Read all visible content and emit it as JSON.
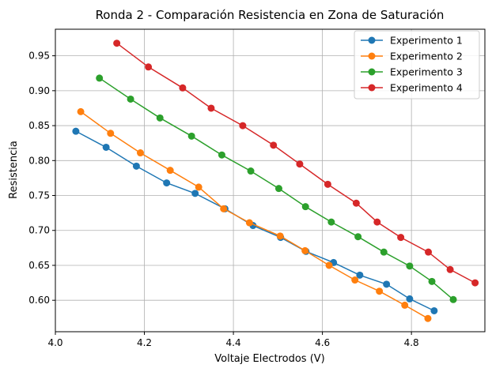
{
  "chart_data": {
    "type": "line",
    "title": "Ronda 2 - Comparación Resistencia en Zona de Saturación",
    "xlabel": "Voltaje Electrodos (V)",
    "ylabel": "Resistencia",
    "xlim": [
      4.0,
      4.965
    ],
    "ylim": [
      0.555,
      0.988
    ],
    "xticks": [
      4.0,
      4.2,
      4.4,
      4.6,
      4.8
    ],
    "xtick_labels": [
      "4.0",
      "4.2",
      "4.4",
      "4.6",
      "4.8"
    ],
    "yticks": [
      0.6,
      0.65,
      0.7,
      0.75,
      0.8,
      0.85,
      0.9,
      0.95
    ],
    "ytick_labels": [
      "0.60",
      "0.65",
      "0.70",
      "0.75",
      "0.80",
      "0.85",
      "0.90",
      "0.95"
    ],
    "grid": true,
    "legend_position": "top-right",
    "series": [
      {
        "name": "Experimento 1",
        "color": "#1f77b4",
        "x": [
          4.046,
          4.114,
          4.182,
          4.25,
          4.314,
          4.381,
          4.444,
          4.506,
          4.563,
          4.625,
          4.684,
          4.744,
          4.796,
          4.851
        ],
        "y": [
          0.842,
          0.819,
          0.792,
          0.768,
          0.753,
          0.731,
          0.707,
          0.69,
          0.67,
          0.654,
          0.636,
          0.623,
          0.602,
          0.585
        ]
      },
      {
        "name": "Experimento 2",
        "color": "#ff7f0e",
        "x": [
          4.057,
          4.124,
          4.191,
          4.258,
          4.322,
          4.378,
          4.436,
          4.505,
          4.561,
          4.615,
          4.673,
          4.728,
          4.785,
          4.837
        ],
        "y": [
          0.87,
          0.839,
          0.811,
          0.786,
          0.762,
          0.731,
          0.711,
          0.692,
          0.671,
          0.65,
          0.629,
          0.613,
          0.593,
          0.574
        ]
      },
      {
        "name": "Experimento 3",
        "color": "#2ca02c",
        "x": [
          4.099,
          4.169,
          4.235,
          4.306,
          4.374,
          4.439,
          4.502,
          4.562,
          4.62,
          4.68,
          4.738,
          4.796,
          4.846,
          4.894
        ],
        "y": [
          0.918,
          0.888,
          0.861,
          0.835,
          0.808,
          0.785,
          0.76,
          0.734,
          0.712,
          0.691,
          0.669,
          0.649,
          0.627,
          0.601
        ]
      },
      {
        "name": "Experimento 4",
        "color": "#d62728",
        "x": [
          4.138,
          4.209,
          4.286,
          4.35,
          4.421,
          4.49,
          4.549,
          4.612,
          4.676,
          4.723,
          4.776,
          4.838,
          4.887,
          4.943
        ],
        "y": [
          0.968,
          0.934,
          0.904,
          0.875,
          0.85,
          0.822,
          0.795,
          0.766,
          0.739,
          0.712,
          0.69,
          0.669,
          0.644,
          0.625
        ]
      }
    ]
  }
}
